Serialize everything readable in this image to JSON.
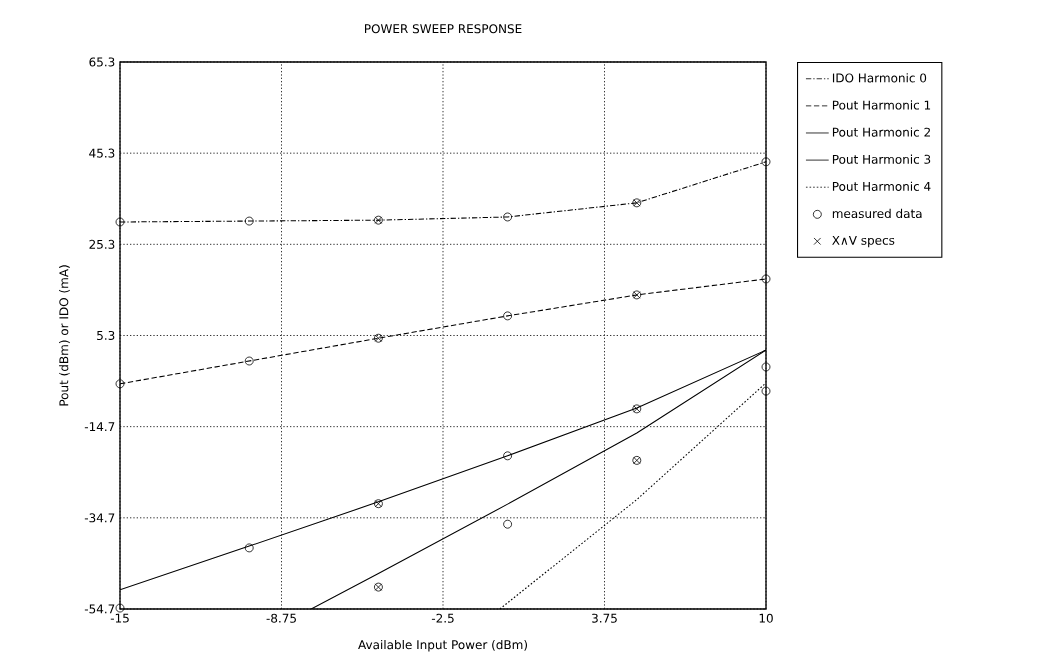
{
  "chart_data": {
    "type": "line",
    "title": "POWER SWEEP RESPONSE",
    "xlabel": "Available Input Power (dBm)",
    "ylabel": "Pout (dBm) or IDO (mA)",
    "x": [
      -15,
      -10,
      -5,
      0,
      5,
      10
    ],
    "xlim": [
      -15,
      10
    ],
    "ylim": [
      -54.7,
      65.3
    ],
    "xticks": [
      -15,
      -8.75,
      -2.5,
      3.75,
      10
    ],
    "yticks": [
      -54.7,
      -34.7,
      -14.7,
      5.3,
      25.3,
      45.3,
      65.3
    ],
    "grid": true,
    "legend": "top right",
    "series": [
      {
        "name": "IDO  Harmonic 0",
        "color": "#000000",
        "line_style": "dashdot",
        "values": [
          30.2,
          30.4,
          30.6,
          31.3,
          34.4,
          43.4
        ]
      },
      {
        "name": "Pout Harmonic 1",
        "color": "#000000",
        "line_style": "dashed",
        "values": [
          -5.3,
          -0.3,
          4.7,
          9.6,
          14.2,
          17.7
        ]
      },
      {
        "name": "Pout Harmonic 2",
        "color": "#000000",
        "line_style": "solid",
        "values": [
          -50.5,
          -40.9,
          -31.2,
          -21.1,
          -10.6,
          2.1
        ]
      },
      {
        "name": "Pout Harmonic 3",
        "color": "#000000",
        "line_style": "solid",
        "x": [
          -7.6,
          -5,
          0,
          5,
          10
        ],
        "values": [
          -54.7,
          -46.9,
          -31.7,
          -16.1,
          2.1
        ]
      },
      {
        "name": "Pout Harmonic 4",
        "color": "#000000",
        "line_style": "dotted",
        "x": [
          -0.3,
          5,
          10
        ],
        "values": [
          -54.7,
          -30.7,
          -5.1
        ]
      },
      {
        "name": "measured data",
        "type": "scatter",
        "marker": "circle",
        "color": "#000000",
        "x": [
          -15,
          -10,
          -5,
          0,
          5,
          10,
          -15,
          -10,
          -5,
          0,
          5,
          10,
          -15,
          -10,
          -5,
          0,
          5,
          10,
          -5,
          0,
          5,
          10
        ],
        "values": [
          30.2,
          30.4,
          30.6,
          31.3,
          34.4,
          43.4,
          -5.3,
          -0.3,
          4.7,
          9.6,
          14.2,
          17.7,
          -54.5,
          -41.3,
          -31.6,
          -21.1,
          -10.8,
          -1.6,
          -49.9,
          -36.1,
          -22.1,
          -6.9
        ]
      },
      {
        "name": "X∧V specs",
        "type": "scatter",
        "marker": "cross",
        "color": "#000000",
        "x": [
          -5,
          5,
          -5,
          5,
          -5,
          5,
          -5,
          5
        ],
        "values": [
          30.6,
          34.4,
          4.7,
          14.2,
          -31.6,
          -10.8,
          -49.9,
          -22.1
        ]
      }
    ]
  }
}
